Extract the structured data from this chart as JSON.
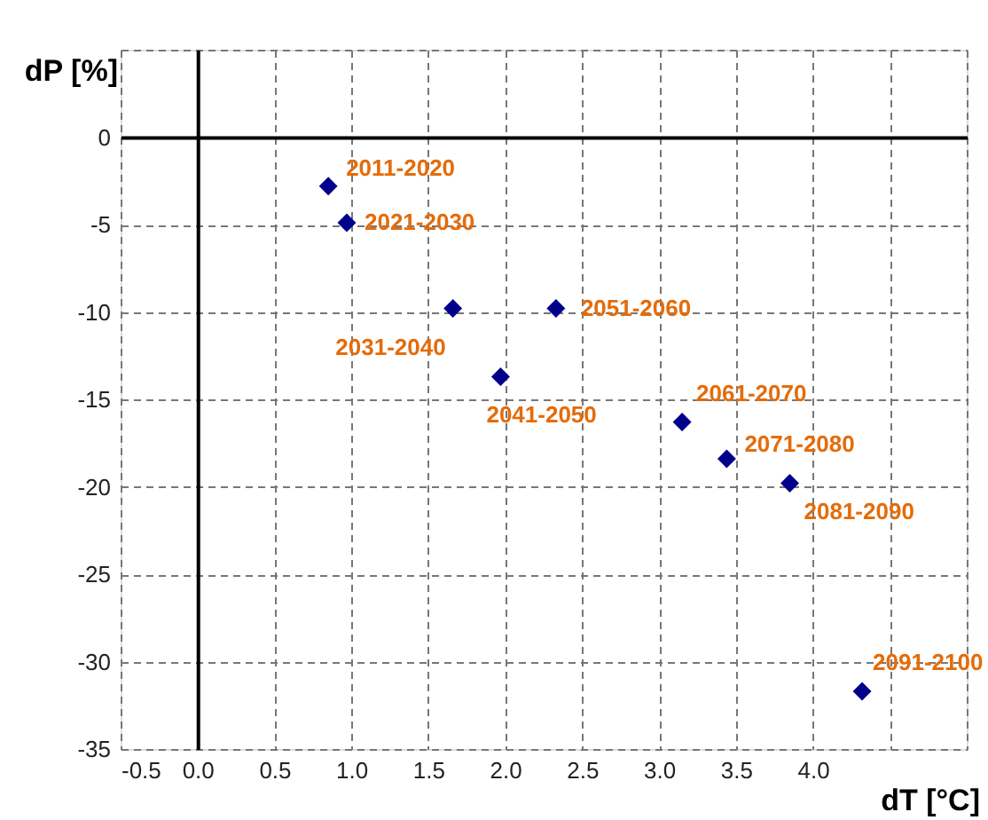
{
  "chart_data": {
    "type": "scatter",
    "xlabel": "dT [°C]",
    "ylabel": "dP [%]",
    "x": [
      0.85,
      0.97,
      1.66,
      1.97,
      2.33,
      3.15,
      3.44,
      3.85,
      4.32
    ],
    "series": [
      {
        "color": "#00008b",
        "values": [
          -2.8,
          -4.9,
          -9.8,
          -13.7,
          -9.8,
          -16.3,
          -18.4,
          -19.8,
          -31.7
        ]
      }
    ],
    "marker": "diamond",
    "grid": true,
    "xlim": [
      -0.5,
      5.0
    ],
    "xticks": [
      -0.5,
      {
        "value": 0,
        "label": "0.0"
      },
      0.5,
      {
        "value": 1,
        "label": "1.0"
      },
      1.5,
      {
        "value": 2,
        "label": "2.0"
      },
      2.5,
      {
        "value": 3,
        "label": "3.0"
      },
      3.5,
      {
        "value": 4,
        "label": "4.0"
      },
      {
        "value": 4.5,
        "label": null
      },
      {
        "value": 5.0,
        "label": null
      }
    ],
    "ylim": [
      -35,
      5
    ],
    "yticks": [
      -35,
      -30,
      -25,
      -20,
      -15,
      -10,
      -5,
      0,
      {
        "value": 5,
        "label": null
      }
    ],
    "annotations": [
      {
        "text": "2011-2020",
        "x": 0.85,
        "y": -2.8
      },
      {
        "text": "2021-2030",
        "x": 0.97,
        "y": -4.9
      },
      {
        "text": "2031-2040",
        "x": 1.66,
        "y": -9.8
      },
      {
        "text": "2041-2050",
        "x": 1.97,
        "y": -13.7
      },
      {
        "text": "2051-2060",
        "x": 2.33,
        "y": -9.8
      },
      {
        "text": "2061-2070",
        "x": 3.15,
        "y": -16.3
      },
      {
        "text": "2071-2080",
        "x": 3.44,
        "y": -18.4
      },
      {
        "text": "2081-2090",
        "x": 3.85,
        "y": -19.8
      },
      {
        "text": "2091-2100",
        "x": 4.32,
        "y": -31.7
      }
    ]
  }
}
